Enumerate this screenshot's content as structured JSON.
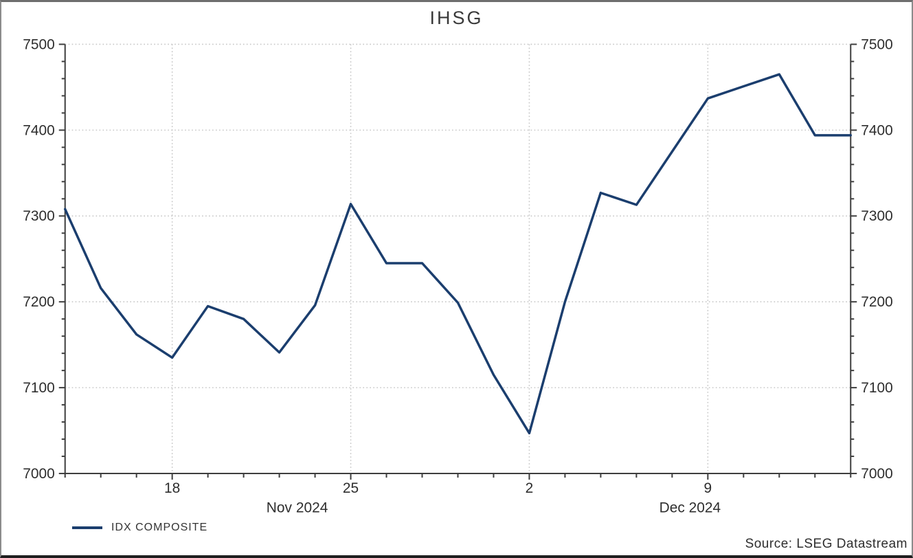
{
  "title": "IHSG",
  "legend": {
    "label": "IDX COMPOSITE"
  },
  "source": "Source: LSEG Datastream",
  "colors": {
    "line": "#1b3e6e",
    "grid": "#c6c6c6",
    "axis": "#3d3d3d",
    "tick_text": "#2e2e2e",
    "title_text": "#3a3a3a"
  },
  "chart_data": {
    "type": "line",
    "title": "IHSG",
    "x": [
      "Nov 13",
      "Nov 14",
      "Nov 15",
      "Nov 18",
      "Nov 19",
      "Nov 20",
      "Nov 21",
      "Nov 22",
      "Nov 25",
      "Nov 26",
      "Nov 27",
      "Nov 28",
      "Nov 29",
      "Dec 2",
      "Dec 3",
      "Dec 4",
      "Dec 5",
      "Dec 6",
      "Dec 9",
      "Dec 10",
      "Dec 11",
      "Dec 12",
      "Dec 13"
    ],
    "series": [
      {
        "name": "IDX COMPOSITE",
        "values": [
          7308,
          7216,
          7162,
          7135,
          7195,
          7180,
          7141,
          7196,
          7314,
          7245,
          7245,
          7199,
          7115,
          7047,
          7200,
          7327,
          7313,
          7375,
          7437,
          7451,
          7465,
          7394,
          7394
        ]
      }
    ],
    "ylim": [
      7000,
      7500
    ],
    "yticks": [
      7000,
      7100,
      7200,
      7300,
      7400,
      7500
    ],
    "y_minor_step": 20,
    "xticks": [
      {
        "label": "18",
        "index": 3
      },
      {
        "label": "25",
        "index": 8
      },
      {
        "label": "2",
        "index": 13
      },
      {
        "label": "9",
        "index": 18
      }
    ],
    "month_labels": [
      {
        "label": "Nov 2024",
        "center_index": 6.5
      },
      {
        "label": "Dec 2024",
        "center_index": 17.5
      }
    ],
    "grid": true,
    "legend_position": "bottom-left",
    "y_axis_sides": "both"
  }
}
